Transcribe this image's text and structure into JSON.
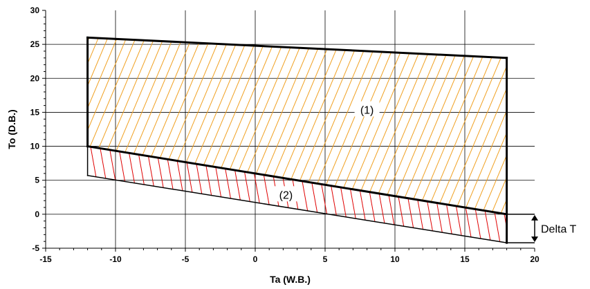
{
  "chart_data": {
    "type": "area",
    "xlabel": "Ta (W.B.)",
    "ylabel": "To (D.B.)",
    "xlim": [
      -15,
      20
    ],
    "ylim": [
      -5,
      30
    ],
    "x_ticks": [
      -15,
      -10,
      -5,
      0,
      5,
      10,
      15,
      20
    ],
    "y_ticks": [
      -5,
      0,
      5,
      10,
      15,
      20,
      25,
      30
    ],
    "x_tick_labels": [
      "-15",
      "-10",
      "-5",
      "0",
      "5",
      "10",
      "15",
      "20"
    ],
    "y_tick_labels": [
      "-5",
      "0",
      "5",
      "10",
      "15",
      "20",
      "25",
      "30"
    ],
    "grid": true,
    "regions": [
      {
        "label": "(1)",
        "hatch_color": "#f0a020",
        "hatch": "forward-diagonal",
        "polygon": [
          [
            -12,
            26
          ],
          [
            18,
            23
          ],
          [
            18,
            0
          ],
          [
            -12,
            10
          ]
        ],
        "label_pos": [
          8,
          15.3
        ]
      },
      {
        "label": "(2)",
        "hatch_color": "#e00000",
        "hatch": "back-diagonal",
        "polygon": [
          [
            -12,
            10
          ],
          [
            18,
            0
          ],
          [
            18,
            -4.2
          ],
          [
            -12,
            5.7
          ]
        ],
        "label_pos": [
          2.2,
          2.8
        ]
      }
    ],
    "boundary_lines": [
      {
        "points": [
          [
            -12,
            26
          ],
          [
            18,
            23
          ]
        ],
        "weight": "bold"
      },
      {
        "points": [
          [
            -12,
            26
          ],
          [
            -12,
            10
          ]
        ],
        "weight": "bold"
      },
      {
        "points": [
          [
            18,
            23
          ],
          [
            18,
            -4.2
          ]
        ],
        "weight": "bold"
      },
      {
        "points": [
          [
            -12,
            10
          ],
          [
            18,
            0
          ]
        ],
        "weight": "bold"
      },
      {
        "points": [
          [
            -12,
            10
          ],
          [
            -12,
            5.7
          ]
        ],
        "weight": "thin"
      },
      {
        "points": [
          [
            -12,
            5.7
          ],
          [
            18,
            -4.2
          ]
        ],
        "weight": "thin"
      }
    ],
    "delta": {
      "label": "Delta T",
      "x_from": 18,
      "x_to": 20,
      "y_top": 0,
      "y_bottom": -4.2,
      "arrow_x": 20
    }
  }
}
